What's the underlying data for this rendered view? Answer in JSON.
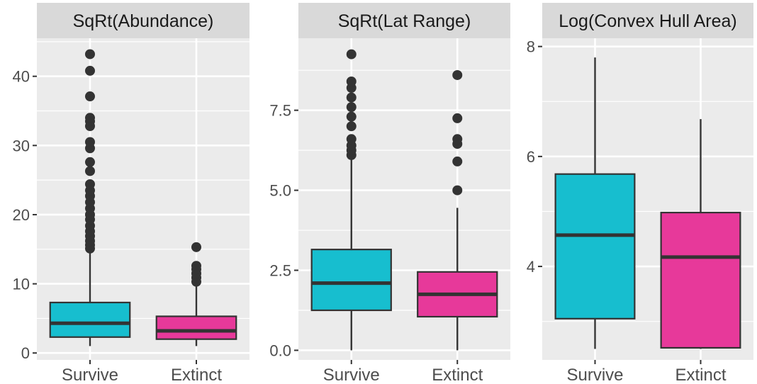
{
  "chart_data": [
    {
      "type": "box",
      "title": "SqRt(Abundance)",
      "categories": [
        "Survive",
        "Extinct"
      ],
      "ylim": [
        -1,
        45.5
      ],
      "yticks": [
        0,
        10,
        20,
        30,
        40
      ],
      "ytick_labels": [
        "0",
        "10",
        "20",
        "30",
        "40"
      ],
      "boxes": [
        {
          "category": "Survive",
          "min": 1.0,
          "q1": 2.3,
          "median": 4.3,
          "q3": 7.3,
          "max": 14.8,
          "outliers": [
            15.1,
            15.6,
            16.2,
            16.9,
            17.6,
            18.4,
            19.3,
            20.0,
            20.9,
            21.8,
            22.7,
            23.5,
            24.4,
            26.3,
            27.6,
            29.6,
            30.5,
            32.8,
            33.5,
            34.0,
            37.1,
            40.8,
            43.2
          ]
        },
        {
          "category": "Extinct",
          "min": 1.0,
          "q1": 2.0,
          "median": 3.2,
          "q3": 5.3,
          "max": 10.0,
          "outliers": [
            10.3,
            10.9,
            11.5,
            12.1,
            12.6,
            15.3
          ]
        }
      ],
      "colors": [
        "#17becf",
        "#e7399a"
      ],
      "grid": true,
      "legend": "none"
    },
    {
      "type": "box",
      "title": "SqRt(Lat Range)",
      "categories": [
        "Survive",
        "Extinct"
      ],
      "ylim": [
        -0.3,
        9.75
      ],
      "yticks": [
        0.0,
        2.5,
        5.0,
        7.5
      ],
      "ytick_labels": [
        "0.0",
        "2.5",
        "5.0",
        "7.5"
      ],
      "boxes": [
        {
          "category": "Survive",
          "min": 0.0,
          "q1": 1.25,
          "median": 2.1,
          "q3": 3.15,
          "max": 6.0,
          "outliers": [
            6.1,
            6.25,
            6.4,
            6.6,
            7.0,
            7.3,
            7.6,
            7.9,
            8.2,
            8.4,
            9.25
          ]
        },
        {
          "category": "Extinct",
          "min": 0.0,
          "q1": 1.05,
          "median": 1.75,
          "q3": 2.45,
          "max": 4.45,
          "outliers": [
            5.0,
            5.9,
            6.45,
            6.6,
            7.25,
            8.6
          ]
        }
      ],
      "colors": [
        "#17becf",
        "#e7399a"
      ],
      "grid": true,
      "legend": "none"
    },
    {
      "type": "box",
      "title": "Log(Convex Hull Area)",
      "categories": [
        "Survive",
        "Extinct"
      ],
      "ylim": [
        2.3,
        8.15
      ],
      "yticks": [
        4,
        6,
        8
      ],
      "ytick_labels": [
        "4",
        "6",
        "8"
      ],
      "boxes": [
        {
          "category": "Survive",
          "min": 2.5,
          "q1": 3.05,
          "median": 4.57,
          "q3": 5.68,
          "max": 7.8,
          "outliers": []
        },
        {
          "category": "Extinct",
          "min": 2.5,
          "q1": 2.52,
          "median": 4.17,
          "q3": 4.98,
          "max": 6.68,
          "outliers": []
        }
      ],
      "colors": [
        "#17becf",
        "#e7399a"
      ],
      "grid": true,
      "legend": "none"
    }
  ]
}
